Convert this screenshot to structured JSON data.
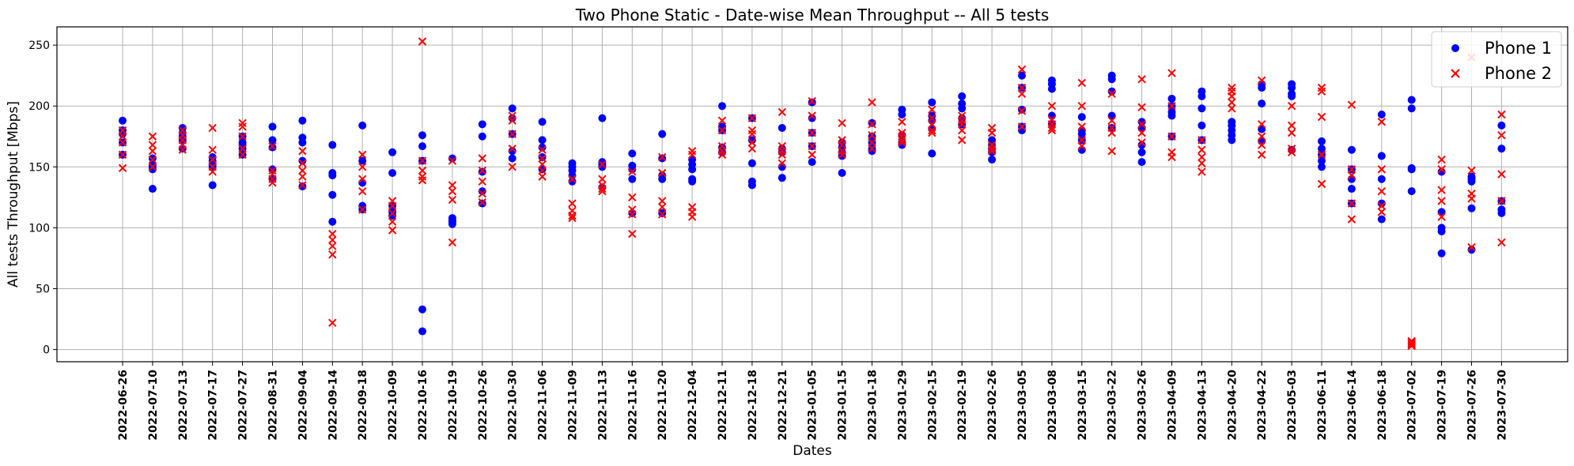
{
  "chart_data": {
    "type": "scatter",
    "title": "Two Phone Static - Date-wise Mean Throughput -- All 5 tests",
    "xlabel": "Dates",
    "ylabel": "All tests Throughput [Mbps]",
    "ylim": [
      -10,
      265
    ],
    "yticks": [
      0,
      50,
      100,
      150,
      200,
      250
    ],
    "grid": true,
    "legend_position": "top-right",
    "categories": [
      "2022-06-26",
      "2022-07-10",
      "2022-07-13",
      "2022-07-17",
      "2022-07-27",
      "2022-08-31",
      "2022-09-04",
      "2022-09-14",
      "2022-09-18",
      "2022-10-09",
      "2022-10-16",
      "2022-10-19",
      "2022-10-26",
      "2022-10-30",
      "2022-11-06",
      "2022-11-09",
      "2022-11-13",
      "2022-11-16",
      "2022-11-20",
      "2022-12-04",
      "2022-12-11",
      "2022-12-18",
      "2022-12-21",
      "2023-01-05",
      "2023-01-15",
      "2023-01-18",
      "2023-01-29",
      "2023-02-15",
      "2023-02-19",
      "2023-02-26",
      "2023-03-05",
      "2023-03-08",
      "2023-03-15",
      "2023-03-22",
      "2023-03-26",
      "2023-04-09",
      "2023-04-13",
      "2023-04-20",
      "2023-04-22",
      "2023-05-03",
      "2023-06-11",
      "2023-06-14",
      "2023-06-18",
      "2023-07-02",
      "2023-07-19",
      "2023-07-26",
      "2023-07-30"
    ],
    "series": [
      {
        "name": "Phone 1",
        "marker": "circle",
        "color": "#0000ff",
        "values": [
          [
            188,
            177,
            170,
            160,
            180
          ],
          [
            157,
            152,
            150,
            132,
            148
          ],
          [
            182,
            178,
            172,
            165,
            175
          ],
          [
            158,
            155,
            150,
            135,
            152
          ],
          [
            175,
            170,
            165,
            160,
            168
          ],
          [
            183,
            172,
            166,
            148,
            140
          ],
          [
            188,
            174,
            170,
            155,
            134
          ],
          [
            168,
            145,
            143,
            127,
            105
          ],
          [
            184,
            155,
            137,
            118,
            115
          ],
          [
            162,
            145,
            118,
            113,
            110
          ],
          [
            176,
            167,
            155,
            33,
            15
          ],
          [
            157,
            108,
            106,
            105,
            103
          ],
          [
            185,
            175,
            146,
            130,
            120
          ],
          [
            198,
            190,
            177,
            163,
            157
          ],
          [
            187,
            172,
            166,
            158,
            148
          ],
          [
            153,
            150,
            147,
            143,
            138
          ],
          [
            190,
            154,
            152,
            150,
            133
          ],
          [
            161,
            151,
            148,
            140,
            112
          ],
          [
            177,
            157,
            143,
            140,
            112
          ],
          [
            156,
            152,
            148,
            140,
            138
          ],
          [
            200,
            183,
            180,
            166,
            162
          ],
          [
            190,
            172,
            153,
            138,
            135
          ],
          [
            182,
            165,
            162,
            150,
            141
          ],
          [
            203,
            190,
            178,
            167,
            154
          ],
          [
            170,
            166,
            162,
            159,
            145
          ],
          [
            186,
            175,
            170,
            165,
            163
          ],
          [
            197,
            193,
            176,
            170,
            168
          ],
          [
            203,
            192,
            188,
            181,
            161
          ],
          [
            208,
            202,
            198,
            190,
            185
          ],
          [
            172,
            168,
            165,
            162,
            156
          ],
          [
            225,
            215,
            197,
            183,
            180
          ],
          [
            221,
            218,
            214,
            192,
            185
          ],
          [
            191,
            180,
            177,
            172,
            164
          ],
          [
            225,
            222,
            212,
            192,
            182
          ],
          [
            187,
            182,
            168,
            162,
            154
          ],
          [
            206,
            200,
            195,
            192,
            175
          ],
          [
            212,
            208,
            198,
            184,
            172
          ],
          [
            187,
            184,
            180,
            176,
            172
          ],
          [
            218,
            215,
            202,
            181,
            171
          ],
          [
            218,
            215,
            210,
            208,
            164
          ],
          [
            171,
            165,
            160,
            155,
            150
          ],
          [
            164,
            148,
            140,
            132,
            120
          ],
          [
            193,
            159,
            140,
            120,
            107
          ],
          [
            205,
            198,
            149,
            130,
            148
          ],
          [
            146,
            113,
            100,
            97,
            79
          ],
          [
            142,
            140,
            138,
            116,
            82
          ],
          [
            184,
            165,
            122,
            115,
            112
          ]
        ]
      },
      {
        "name": "Phone 2",
        "marker": "x",
        "color": "#ff0000",
        "values": [
          [
            180,
            175,
            160,
            149,
            170
          ],
          [
            175,
            168,
            163,
            156,
            150
          ],
          [
            180,
            176,
            172,
            168,
            164
          ],
          [
            182,
            164,
            156,
            150,
            146
          ],
          [
            186,
            183,
            175,
            165,
            160
          ],
          [
            167,
            147,
            144,
            140,
            137
          ],
          [
            163,
            153,
            147,
            142,
            135
          ],
          [
            95,
            90,
            85,
            78,
            22
          ],
          [
            160,
            150,
            140,
            130,
            115
          ],
          [
            122,
            118,
            112,
            105,
            98
          ],
          [
            253,
            155,
            147,
            142,
            139
          ],
          [
            135,
            130,
            123,
            88,
            155
          ],
          [
            157,
            147,
            138,
            128,
            121
          ],
          [
            192,
            188,
            177,
            165,
            150
          ],
          [
            164,
            157,
            152,
            147,
            142
          ],
          [
            120,
            114,
            110,
            108,
            140
          ],
          [
            140,
            135,
            132,
            130,
            152
          ],
          [
            146,
            125,
            115,
            111,
            95
          ],
          [
            158,
            122,
            117,
            111,
            145
          ],
          [
            163,
            160,
            117,
            113,
            109
          ],
          [
            188,
            180,
            167,
            163,
            160
          ],
          [
            190,
            180,
            177,
            170,
            165
          ],
          [
            195,
            167,
            163,
            160,
            153
          ],
          [
            204,
            192,
            178,
            167,
            160
          ],
          [
            186,
            172,
            168,
            163,
            160
          ],
          [
            203,
            185,
            176,
            170,
            165
          ],
          [
            187,
            178,
            175,
            172,
            170
          ],
          [
            197,
            190,
            185,
            180,
            178
          ],
          [
            192,
            188,
            185,
            180,
            172
          ],
          [
            182,
            178,
            168,
            165,
            163
          ],
          [
            230,
            215,
            210,
            196,
            183
          ],
          [
            200,
            189,
            185,
            180,
            182
          ],
          [
            219,
            200,
            183,
            172,
            167
          ],
          [
            210,
            188,
            182,
            178,
            163
          ],
          [
            222,
            199,
            185,
            178,
            170
          ],
          [
            227,
            200,
            175,
            162,
            158
          ],
          [
            172,
            164,
            158,
            153,
            146
          ],
          [
            215,
            212,
            208,
            203,
            198
          ],
          [
            221,
            185,
            175,
            168,
            160
          ],
          [
            200,
            184,
            178,
            165,
            162
          ],
          [
            215,
            212,
            191,
            160,
            136
          ],
          [
            201,
            148,
            143,
            120,
            107
          ],
          [
            187,
            148,
            130,
            118,
            113
          ],
          [
            7,
            3,
            5,
            6,
            4
          ],
          [
            156,
            148,
            131,
            122,
            109
          ],
          [
            240,
            147,
            128,
            124,
            84
          ],
          [
            193,
            176,
            144,
            122,
            88
          ]
        ]
      }
    ]
  }
}
